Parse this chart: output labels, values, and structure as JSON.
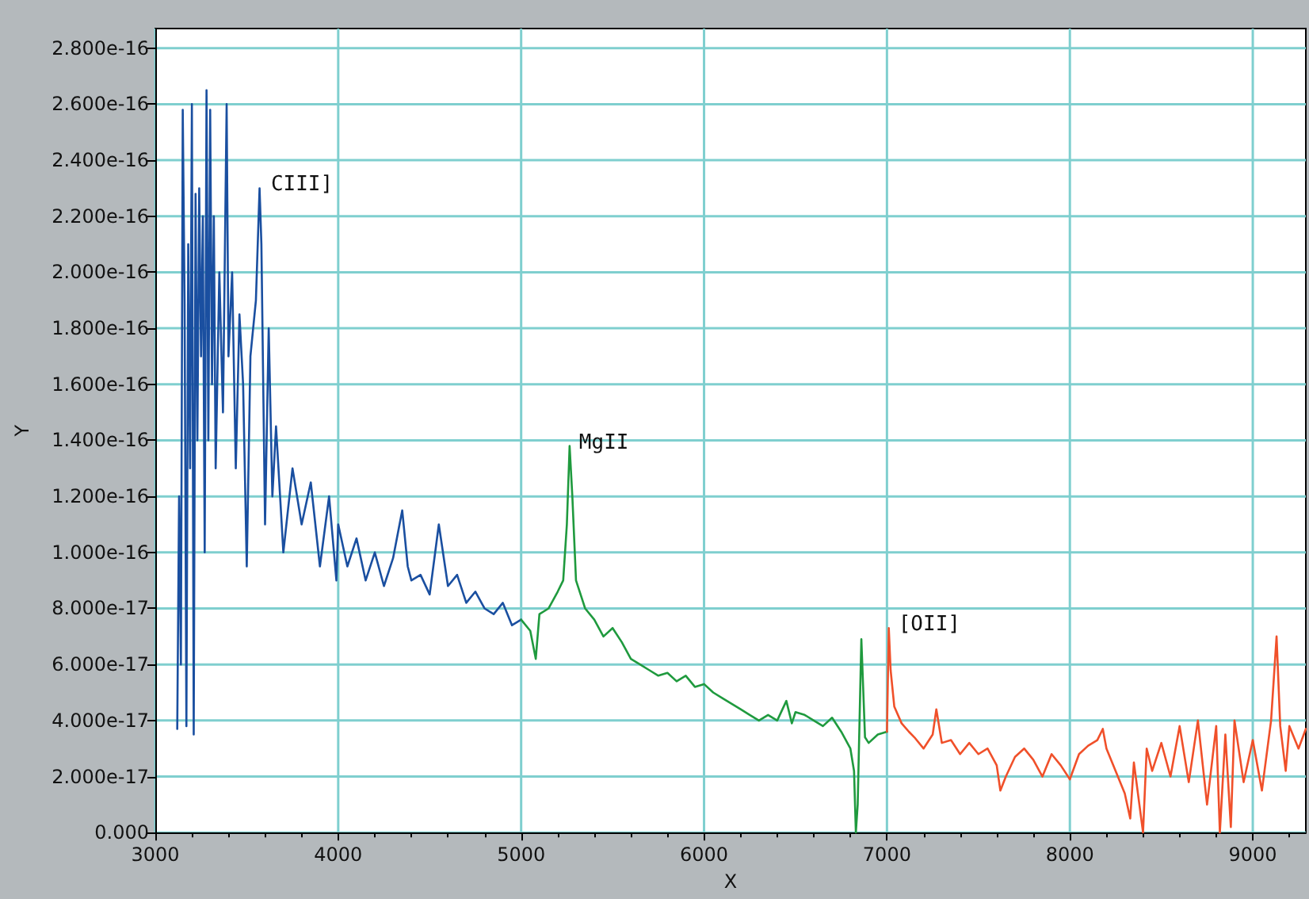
{
  "chart_data": {
    "type": "line",
    "xlabel": "X",
    "ylabel": "Y",
    "grid": true,
    "marker": "none",
    "line_style": "solid",
    "xlim": [
      3000,
      9290
    ],
    "xticks": [
      3000,
      4000,
      5000,
      6000,
      7000,
      8000,
      9000
    ],
    "ylim": [
      0,
      2.87e-16
    ],
    "yticks": [
      {
        "value": 0,
        "label": "0.000"
      },
      {
        "value": 2e-17,
        "label": "2.000e-17"
      },
      {
        "value": 4e-17,
        "label": "4.000e-17"
      },
      {
        "value": 6e-17,
        "label": "6.000e-17"
      },
      {
        "value": 8e-17,
        "label": "8.000e-17"
      },
      {
        "value": 1e-16,
        "label": "1.000e-16"
      },
      {
        "value": 1.2e-16,
        "label": "1.200e-16"
      },
      {
        "value": 1.4e-16,
        "label": "1.400e-16"
      },
      {
        "value": 1.6e-16,
        "label": "1.600e-16"
      },
      {
        "value": 1.8e-16,
        "label": "1.800e-16"
      },
      {
        "value": 2e-16,
        "label": "2.000e-16"
      },
      {
        "value": 2.2e-16,
        "label": "2.200e-16"
      },
      {
        "value": 2.4e-16,
        "label": "2.400e-16"
      },
      {
        "value": 2.6e-16,
        "label": "2.600e-16"
      },
      {
        "value": 2.8e-16,
        "label": "2.800e-16"
      }
    ],
    "annotations": [
      {
        "text": "CIII]",
        "x": 3580,
        "y": 2.3e-16
      },
      {
        "text": "MgII",
        "x": 5265,
        "y": 1.38e-16
      },
      {
        "text": "[OII]",
        "x": 7010,
        "y": 7.3e-17
      }
    ],
    "series": [
      {
        "color": "#1a4fa0",
        "x": [
          3120,
          3130,
          3140,
          3150,
          3160,
          3170,
          3180,
          3190,
          3200,
          3210,
          3220,
          3230,
          3240,
          3250,
          3260,
          3270,
          3280,
          3290,
          3300,
          3310,
          3320,
          3330,
          3350,
          3370,
          3390,
          3400,
          3420,
          3440,
          3460,
          3480,
          3500,
          3520,
          3550,
          3570,
          3580,
          3600,
          3620,
          3640,
          3660,
          3700,
          3750,
          3800,
          3850,
          3900,
          3950,
          3990,
          4000,
          4050,
          4100,
          4150,
          4200,
          4250,
          4300,
          4350,
          4380,
          4400,
          4450,
          4500,
          4550,
          4600,
          4650,
          4700,
          4750,
          4800,
          4850,
          4900,
          4950,
          5000
        ],
        "values": [
          3.7e-17,
          1.2e-16,
          6e-17,
          2.58e-16,
          1.9e-16,
          3.8e-17,
          2.1e-16,
          1.3e-16,
          2.6e-16,
          3.5e-17,
          2.28e-16,
          1.4e-16,
          2.3e-16,
          1.7e-16,
          2.2e-16,
          1e-16,
          2.65e-16,
          1.4e-16,
          2.58e-16,
          1.6e-16,
          2.2e-16,
          1.3e-16,
          2e-16,
          1.5e-16,
          2.6e-16,
          1.7e-16,
          2e-16,
          1.3e-16,
          1.85e-16,
          1.6e-16,
          9.5e-17,
          1.7e-16,
          1.9e-16,
          2.3e-16,
          2.1e-16,
          1.1e-16,
          1.8e-16,
          1.2e-16,
          1.45e-16,
          1e-16,
          1.3e-16,
          1.1e-16,
          1.25e-16,
          9.5e-17,
          1.2e-16,
          9e-17,
          1.1e-16,
          9.5e-17,
          1.05e-16,
          9e-17,
          1e-16,
          8.8e-17,
          9.8e-17,
          1.15e-16,
          9.5e-17,
          9e-17,
          9.2e-17,
          8.5e-17,
          1.1e-16,
          8.8e-17,
          9.2e-17,
          8.2e-17,
          8.6e-17,
          8e-17,
          7.8e-17,
          8.2e-17,
          7.4e-17,
          7.6e-17
        ]
      },
      {
        "color": "#1f9a3e",
        "x": [
          5000,
          5050,
          5080,
          5100,
          5150,
          5200,
          5230,
          5250,
          5265,
          5280,
          5300,
          5350,
          5400,
          5450,
          5500,
          5550,
          5600,
          5650,
          5700,
          5750,
          5800,
          5850,
          5900,
          5950,
          6000,
          6050,
          6100,
          6150,
          6200,
          6250,
          6300,
          6350,
          6400,
          6450,
          6480,
          6500,
          6550,
          6600,
          6650,
          6700,
          6750,
          6800,
          6820,
          6830,
          6840,
          6860,
          6880,
          6900,
          6950,
          7000
        ],
        "values": [
          7.6e-17,
          7.2e-17,
          6.2e-17,
          7.8e-17,
          8e-17,
          8.6e-17,
          9e-17,
          1.1e-16,
          1.38e-16,
          1.2e-16,
          9e-17,
          8e-17,
          7.6e-17,
          7e-17,
          7.3e-17,
          6.8e-17,
          6.2e-17,
          6e-17,
          5.8e-17,
          5.6e-17,
          5.7e-17,
          5.4e-17,
          5.6e-17,
          5.2e-17,
          5.3e-17,
          5e-17,
          4.8e-17,
          4.6e-17,
          4.4e-17,
          4.2e-17,
          4e-17,
          4.2e-17,
          4e-17,
          4.7e-17,
          3.9e-17,
          4.3e-17,
          4.2e-17,
          4e-17,
          3.8e-17,
          4.1e-17,
          3.6e-17,
          3e-17,
          2.2e-17,
          0,
          1e-17,
          6.9e-17,
          3.4e-17,
          3.2e-17,
          3.5e-17,
          3.6e-17
        ]
      },
      {
        "color": "#f0502a",
        "x": [
          7000,
          7010,
          7020,
          7040,
          7080,
          7120,
          7150,
          7200,
          7250,
          7270,
          7300,
          7350,
          7400,
          7450,
          7500,
          7550,
          7600,
          7620,
          7650,
          7700,
          7750,
          7800,
          7850,
          7900,
          7950,
          8000,
          8050,
          8100,
          8150,
          8180,
          8200,
          8250,
          8300,
          8330,
          8350,
          8400,
          8420,
          8450,
          8500,
          8550,
          8600,
          8650,
          8700,
          8750,
          8800,
          8820,
          8850,
          8880,
          8900,
          8950,
          9000,
          9050,
          9100,
          9130,
          9150,
          9180,
          9200,
          9250,
          9290
        ],
        "values": [
          3.6e-17,
          7.3e-17,
          5.8e-17,
          4.5e-17,
          3.9e-17,
          3.6e-17,
          3.4e-17,
          3e-17,
          3.5e-17,
          4.4e-17,
          3.2e-17,
          3.3e-17,
          2.8e-17,
          3.2e-17,
          2.8e-17,
          3e-17,
          2.4e-17,
          1.5e-17,
          2e-17,
          2.7e-17,
          3e-17,
          2.6e-17,
          2e-17,
          2.8e-17,
          2.4e-17,
          1.9e-17,
          2.8e-17,
          3.1e-17,
          3.3e-17,
          3.7e-17,
          3e-17,
          2.2e-17,
          1.4e-17,
          5e-18,
          2.5e-17,
          0,
          3e-17,
          2.2e-17,
          3.2e-17,
          2e-17,
          3.8e-17,
          1.8e-17,
          4e-17,
          1e-17,
          3.8e-17,
          0,
          3.5e-17,
          2e-18,
          4e-17,
          1.8e-17,
          3.3e-17,
          1.5e-17,
          4e-17,
          7e-17,
          3.8e-17,
          2.2e-17,
          3.8e-17,
          3e-17,
          3.7e-17
        ]
      }
    ]
  }
}
